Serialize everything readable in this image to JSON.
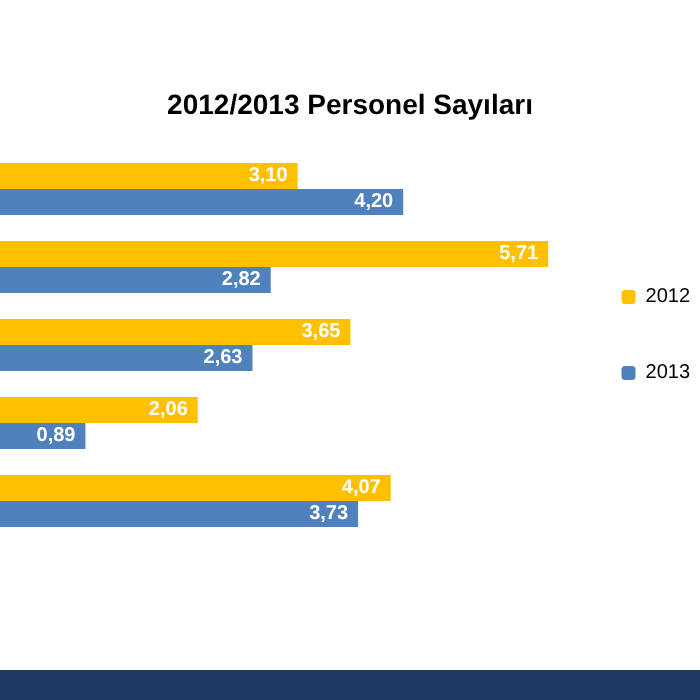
{
  "chart_data": {
    "type": "bar",
    "orientation": "horizontal",
    "title": "2012/2013 Personel Sayıları",
    "categories": [
      null,
      null,
      null,
      null,
      null
    ],
    "tick_labels": false,
    "grid": false,
    "legend": "right",
    "series": [
      {
        "name": "2012",
        "color": "#ffc000",
        "values": [
          3.1,
          5.71,
          3.65,
          2.06,
          4.07
        ],
        "value_labels": [
          "3,10",
          "5,71",
          "3,65",
          "2,06",
          "4,07"
        ]
      },
      {
        "name": "2013",
        "color": "#4f81bd",
        "values": [
          4.2,
          2.82,
          2.63,
          0.89,
          3.73
        ],
        "value_labels": [
          "4,20",
          "2,82",
          "2,63",
          "0,89",
          "3,73"
        ]
      }
    ]
  }
}
